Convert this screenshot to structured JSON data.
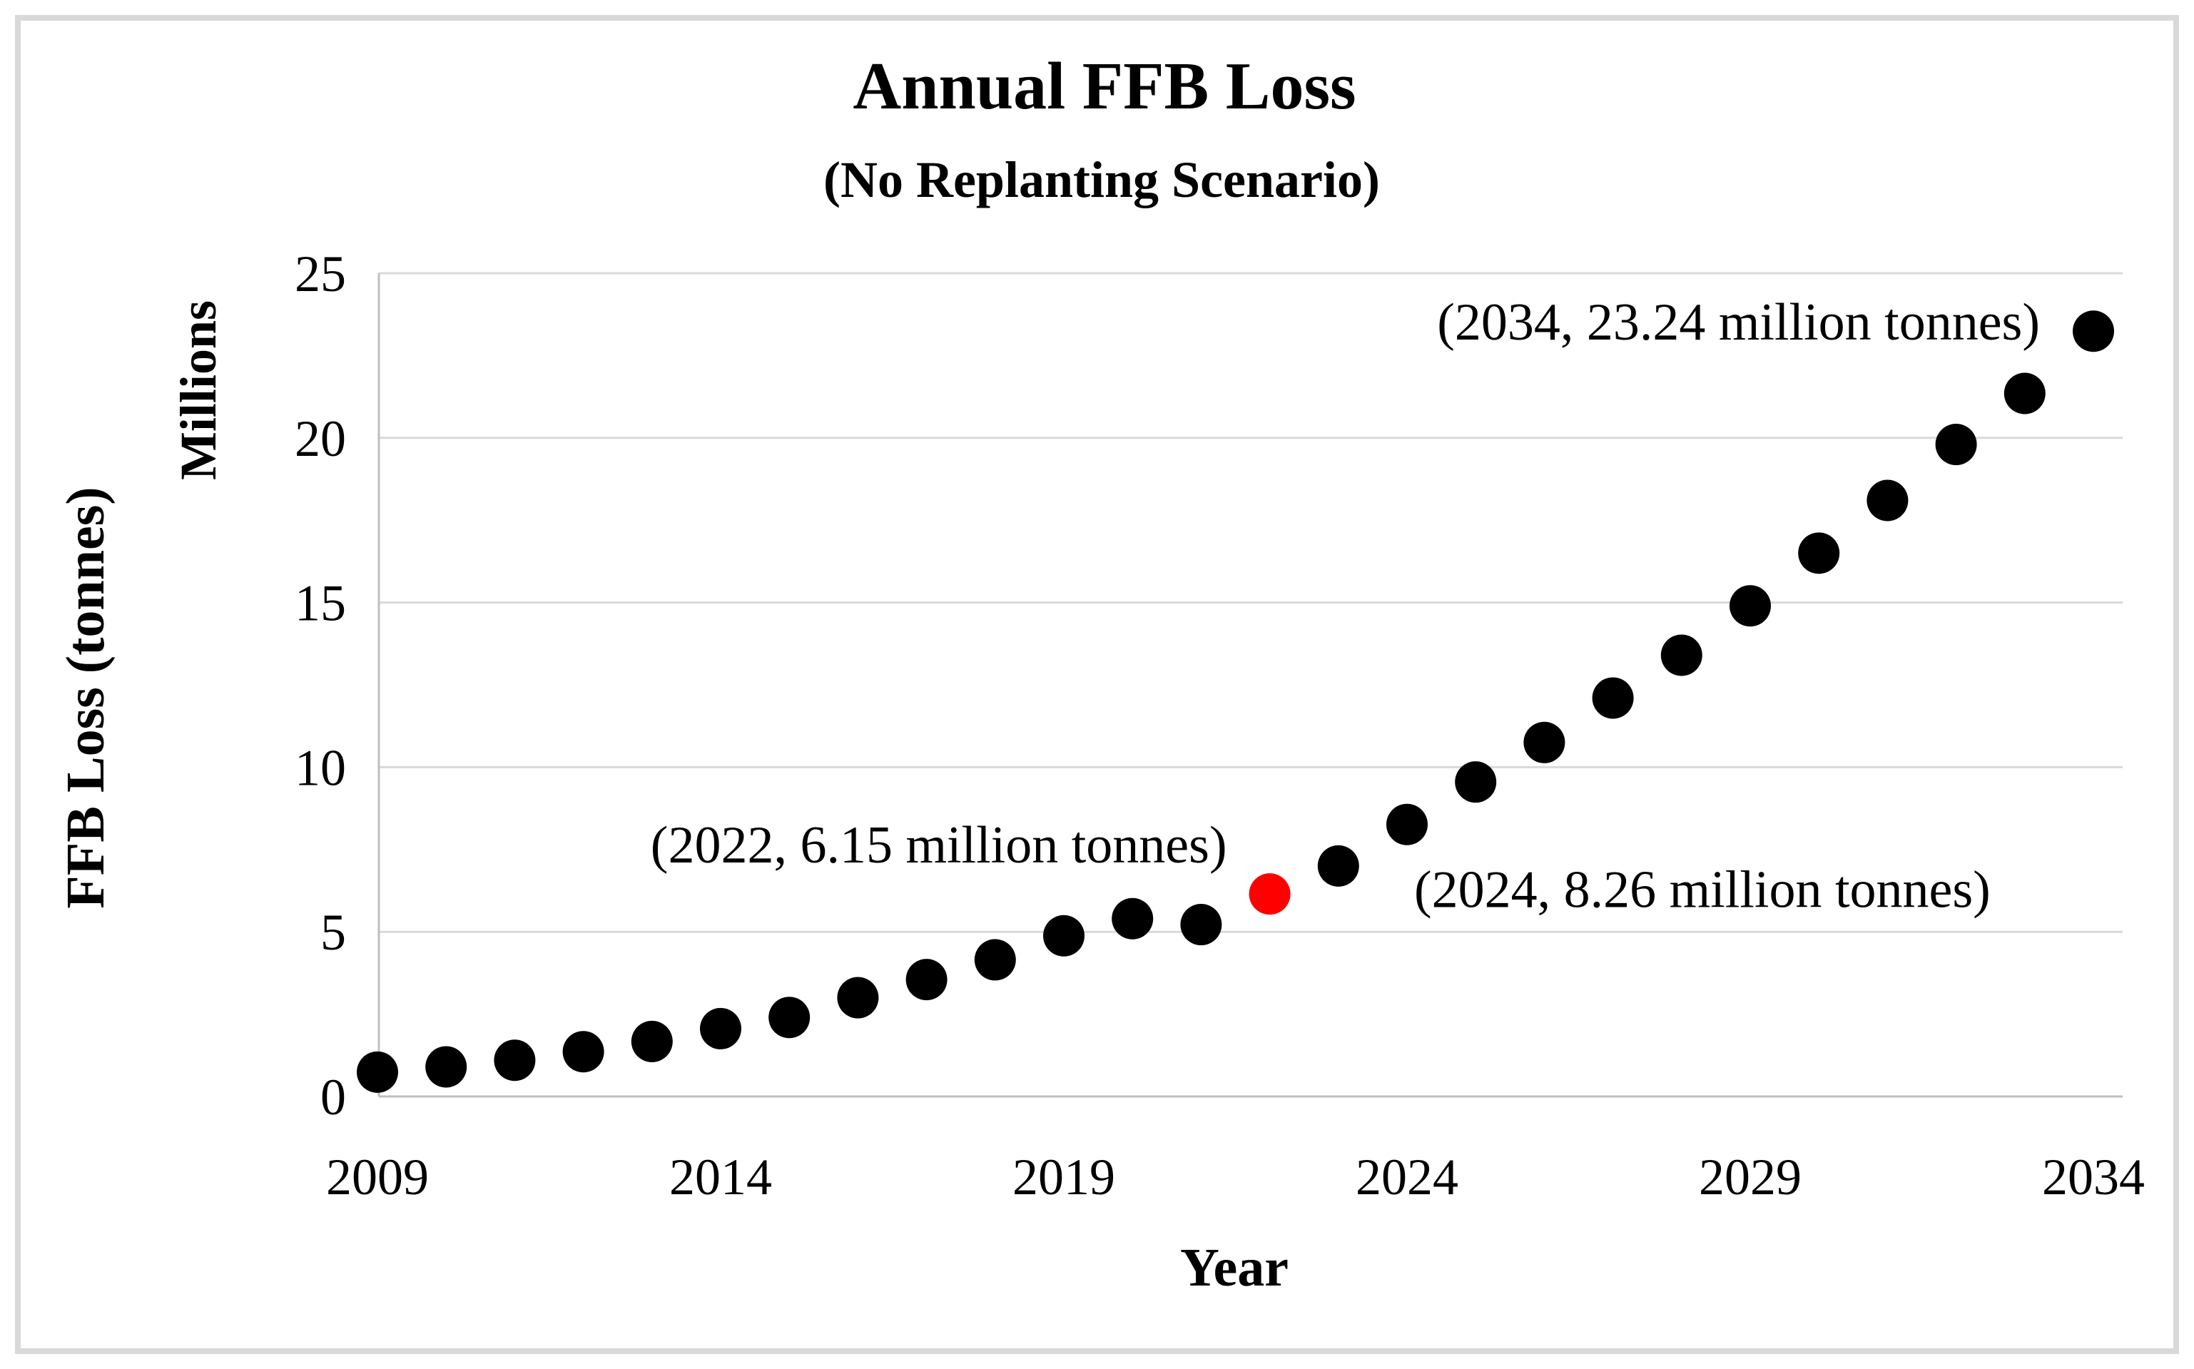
{
  "figure": {
    "title": "Annual FFB Loss",
    "subtitle": "(No Replanting Scenario)",
    "x_axis_title": "Year",
    "y_axis_title": "FFB Loss (tonnes)",
    "y_unit_label": "Millions"
  },
  "chart_data": {
    "type": "scatter",
    "title": "Annual FFB Loss",
    "subtitle": "(No Replanting Scenario)",
    "xlabel": "Year",
    "ylabel": "FFB Loss (tonnes)",
    "y_display_unit": "Millions",
    "xlim": [
      2009,
      2034
    ],
    "ylim": [
      0,
      25
    ],
    "x_ticks": [
      2009,
      2014,
      2019,
      2024,
      2029,
      2034
    ],
    "y_ticks": [
      0,
      5,
      10,
      15,
      20,
      25
    ],
    "grid": "horizontal",
    "legend": "none",
    "series": [
      {
        "name": "Annual FFB loss, no replanting scenario",
        "marker": "circle",
        "color": "#000000",
        "x": [
          2009,
          2010,
          2011,
          2012,
          2013,
          2014,
          2015,
          2016,
          2017,
          2018,
          2019,
          2020,
          2021,
          2022,
          2023,
          2024,
          2025,
          2026,
          2027,
          2028,
          2029,
          2030,
          2031,
          2032,
          2033,
          2034
        ],
        "y": [
          0.74,
          0.9,
          1.1,
          1.36,
          1.67,
          2.06,
          2.4,
          3.0,
          3.55,
          4.15,
          4.88,
          5.4,
          5.22,
          6.15,
          7.0,
          8.26,
          9.55,
          10.75,
          12.1,
          13.4,
          14.9,
          16.5,
          18.1,
          19.8,
          21.35,
          23.24
        ]
      }
    ],
    "highlight_point": {
      "x": 2022,
      "y": 6.15,
      "color": "#FF0000"
    },
    "annotations": [
      {
        "text": "(2034, 23.24 million tonnes)",
        "point_x": 2034,
        "point_y": 23.24
      },
      {
        "text": "(2022, 6.15 million tonnes)",
        "point_x": 2022,
        "point_y": 6.15
      },
      {
        "text": "(2024, 8.26 million tonnes)",
        "point_x": 2024,
        "point_y": 8.26
      }
    ],
    "colors": {
      "point": "#000000",
      "highlight": "#FF0000",
      "gridline": "#D9D9D9",
      "axis_line": "#BFBFBF",
      "figure_border": "#D9D9D9",
      "text": "#000000",
      "background": "#FFFFFF"
    }
  }
}
